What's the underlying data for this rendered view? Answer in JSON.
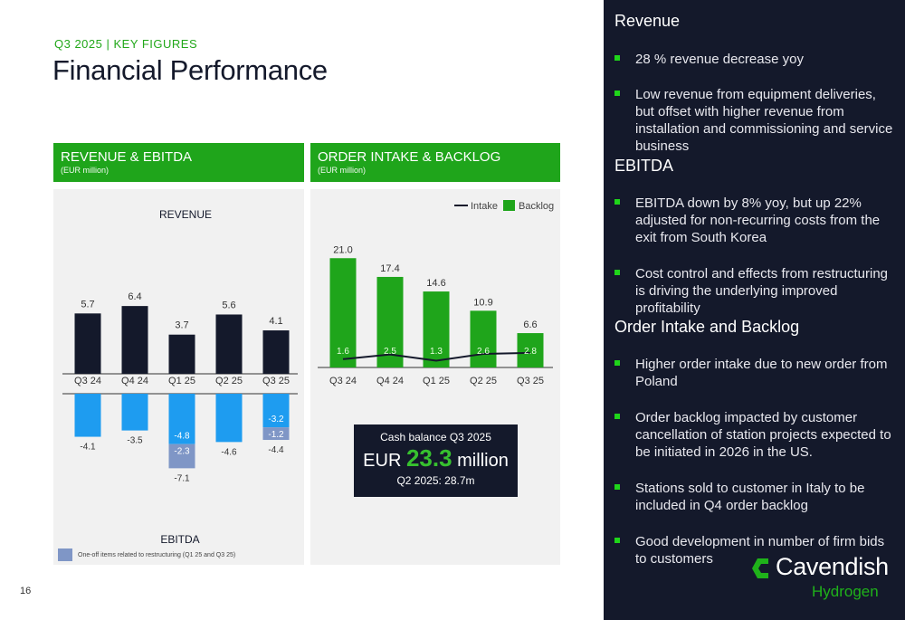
{
  "header": {
    "subtitle": "Q3 2025 | KEY FIGURES",
    "title": "Financial Performance"
  },
  "page_number": "16",
  "left_panel": {
    "heading": "REVENUE & EBITDA",
    "unit": "(EUR million)",
    "revenue_title": "REVENUE",
    "ebitda_title": "EBITDA",
    "one_off_note": "One-off items related to restructuring (Q1 25 and Q3 25)"
  },
  "middle_panel": {
    "heading": "ORDER INTAKE & BACKLOG",
    "unit": "(EUR million)",
    "legend_intake": "Intake",
    "legend_backlog": "Backlog"
  },
  "cash_box": {
    "label": "Cash balance Q3 2025",
    "prefix": "EUR",
    "value": "23.3",
    "suffix": "million",
    "previous": "Q2 2025: 28.7m"
  },
  "right_panel": {
    "sections": [
      {
        "title": "Revenue",
        "bullets": [
          "28 % revenue decrease yoy",
          "Low revenue from equipment deliveries, but offset with higher revenue from installation and commissioning and service business"
        ]
      },
      {
        "title": "EBITDA",
        "bullets": [
          "EBITDA down by 8% yoy, but up 22% adjusted for non-recurring costs from the exit from South Korea",
          "Cost control and effects from restructuring is driving the underlying improved profitability"
        ]
      },
      {
        "title": "Order Intake and Backlog",
        "bullets": [
          "Higher order intake due to new order from Poland",
          "Order backlog impacted by customer cancellation of station projects expected to be initiated in 2026 in the US.",
          "Stations sold to customer in Italy to be included in Q4 order backlog",
          "Good development in number of firm bids to customers"
        ]
      }
    ]
  },
  "logo": {
    "name": "Cavendish",
    "sub": "Hydrogen"
  },
  "colors": {
    "navy": "#14192b",
    "green": "#1fa51b",
    "light_blue": "#1e9cf0",
    "one_off_blue": "#7f96c6",
    "panel_bg": "#f1f1f1"
  },
  "chart_data": [
    {
      "type": "bar",
      "title": "REVENUE",
      "categories": [
        "Q3 24",
        "Q4 24",
        "Q1 25",
        "Q2 25",
        "Q3 25"
      ],
      "values": [
        5.7,
        6.4,
        3.7,
        5.6,
        4.1
      ],
      "ylabel": "EUR million"
    },
    {
      "type": "bar",
      "title": "EBITDA",
      "categories": [
        "Q3 24",
        "Q4 24",
        "Q1 25",
        "Q2 25",
        "Q3 25"
      ],
      "series": [
        {
          "name": "EBITDA",
          "values": [
            -4.1,
            -3.5,
            -4.8,
            -4.6,
            -3.2
          ]
        },
        {
          "name": "One-off items related to restructuring",
          "values": [
            0,
            0,
            -2.3,
            0,
            -1.2
          ]
        }
      ],
      "totals": [
        -4.1,
        -3.5,
        -7.1,
        -4.6,
        -4.4
      ],
      "ylabel": "EUR million"
    },
    {
      "type": "bar",
      "title": "ORDER INTAKE & BACKLOG",
      "categories": [
        "Q3 24",
        "Q4 24",
        "Q1 25",
        "Q2 25",
        "Q3 25"
      ],
      "series": [
        {
          "name": "Backlog",
          "kind": "bar",
          "values": [
            21.0,
            17.4,
            14.6,
            10.9,
            6.6
          ]
        },
        {
          "name": "Intake",
          "kind": "line",
          "values": [
            1.6,
            2.5,
            1.3,
            2.6,
            2.8
          ]
        }
      ],
      "ylabel": "EUR million"
    }
  ]
}
